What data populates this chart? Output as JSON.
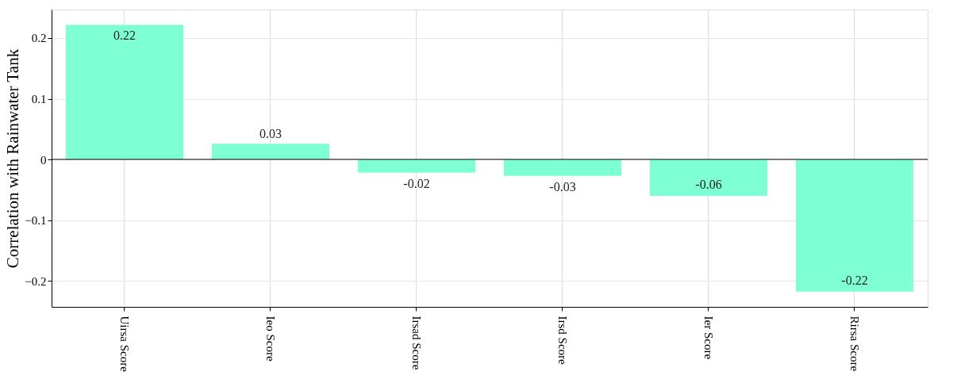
{
  "chart_data": {
    "type": "bar",
    "ylabel": "Correlation with Rainwater Tank",
    "categories": [
      "Uirsa Score",
      "Ieo Score",
      "Irsad Score",
      "Irsd Score",
      "Ier Score",
      "Rirsa Score"
    ],
    "values": [
      0.222,
      0.026,
      -0.022,
      -0.027,
      -0.06,
      -0.218
    ],
    "value_labels": [
      "0.22",
      "0.03",
      "-0.02",
      "-0.03",
      "-0.06",
      "-0.22"
    ],
    "color": "#7fffd4",
    "ylim": [
      -0.243,
      0.247
    ],
    "yticks": [
      -0.2,
      -0.1,
      0,
      0.1,
      0.2
    ],
    "grid": true,
    "ref_lines": [
      {
        "axis": "y",
        "value": 0,
        "color": "#000000"
      }
    ]
  }
}
